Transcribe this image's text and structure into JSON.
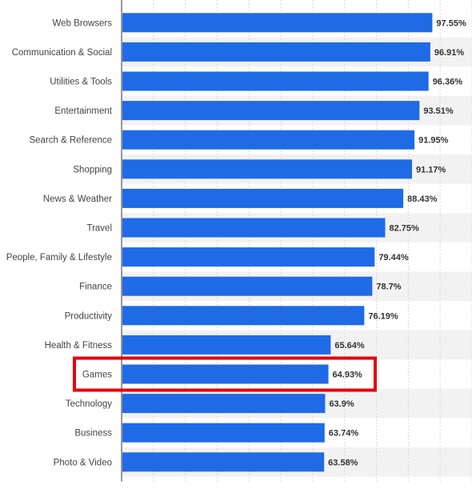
{
  "chart_data": {
    "type": "bar",
    "orientation": "horizontal",
    "categories": [
      "Web Browsers",
      "Communication & Social",
      "Utilities & Tools",
      "Entertainment",
      "Search & Reference",
      "Shopping",
      "News & Weather",
      "Travel",
      "People, Family & Lifestyle",
      "Finance",
      "Productivity",
      "Health & Fitness",
      "Games",
      "Technology",
      "Business",
      "Photo & Video"
    ],
    "values": [
      97.55,
      96.91,
      96.36,
      93.51,
      91.95,
      91.17,
      88.43,
      82.75,
      79.44,
      78.7,
      76.19,
      65.64,
      64.93,
      63.9,
      63.74,
      63.58
    ],
    "value_labels": [
      "97.55%",
      "96.91%",
      "96.36%",
      "93.51%",
      "91.95%",
      "91.17%",
      "88.43%",
      "82.75%",
      "79.44%",
      "78.7%",
      "76.19%",
      "65.64%",
      "64.93%",
      "63.9%",
      "63.74%",
      "63.58%"
    ],
    "unit": "%",
    "xlim": [
      0,
      110
    ],
    "grid": true,
    "legend": "none",
    "highlight": {
      "category": "Games",
      "color": "#e8000b"
    },
    "colors": {
      "bar": "#1f6be6",
      "grid": "#d9d9d9",
      "band": "#f2f2f2",
      "axis": "#333333",
      "label": "#444444",
      "value_label": "#333333"
    }
  }
}
